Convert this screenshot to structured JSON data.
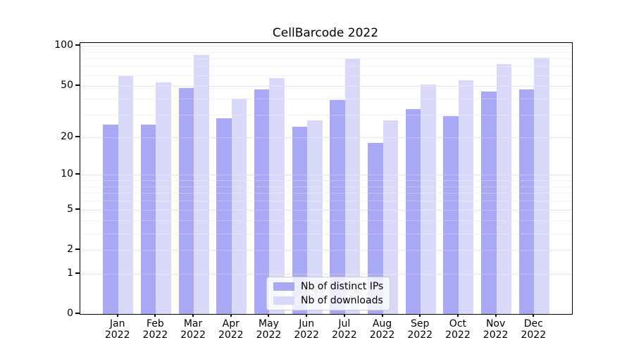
{
  "title": "CellBarcode 2022",
  "chart_data": {
    "type": "bar",
    "title": "CellBarcode 2022",
    "categories": [
      "Jan",
      "Feb",
      "Mar",
      "Apr",
      "May",
      "Jun",
      "Jul",
      "Aug",
      "Sep",
      "Oct",
      "Nov",
      "Dec"
    ],
    "x_sublabel": "2022",
    "series": [
      {
        "name": "Nb of distinct IPs",
        "color": "#a8a8f5",
        "values": [
          25,
          25,
          48,
          28,
          47,
          24,
          39,
          18,
          33,
          29,
          45,
          47
        ]
      },
      {
        "name": "Nb of downloads",
        "color": "#d8d8f9",
        "values": [
          59,
          53,
          85,
          40,
          57,
          27,
          80,
          27,
          51,
          55,
          73,
          81
        ]
      }
    ],
    "xlabel": "",
    "ylabel": "",
    "yscale": "log1p",
    "ylim": [
      0,
      105
    ],
    "y_major_ticks": [
      0,
      1,
      2,
      5,
      10,
      20,
      50,
      100
    ],
    "y_minor_gridlines": [
      3,
      4,
      6,
      7,
      8,
      9,
      30,
      40,
      60,
      70,
      80,
      90
    ],
    "grid": "on",
    "legend_position": "lower center"
  },
  "legend": {
    "items": [
      {
        "label": "Nb of distinct IPs",
        "color": "#a8a8f5"
      },
      {
        "label": "Nb of downloads",
        "color": "#d8d8f9"
      }
    ]
  },
  "colors": {
    "bar_dark": "#a8a8f5",
    "bar_light": "#d8d8f9",
    "spine": "#000000",
    "grid_major": "#d6d6d6",
    "grid_minor": "#ebebeb",
    "background": "#ffffff"
  }
}
